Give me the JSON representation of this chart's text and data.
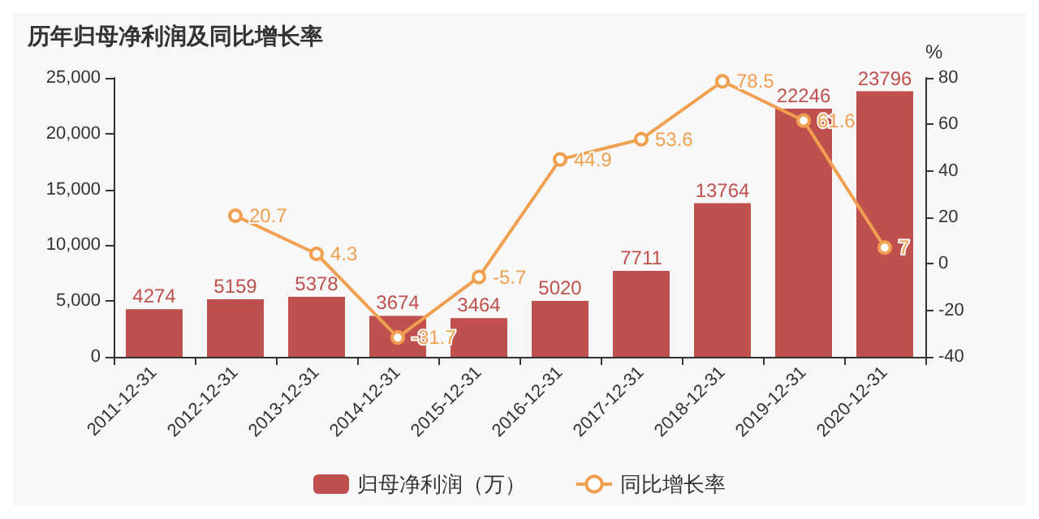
{
  "chart_data": {
    "type": "bar",
    "title": "历年归母净利润及同比增长率",
    "y2label": "%",
    "categories": [
      "2011-12-31",
      "2012-12-31",
      "2013-12-31",
      "2014-12-31",
      "2015-12-31",
      "2016-12-31",
      "2017-12-31",
      "2018-12-31",
      "2019-12-31",
      "2020-12-31"
    ],
    "series": [
      {
        "name": "归母净利润（万）",
        "color": "#c0504d",
        "values": [
          4274,
          5159,
          5378,
          3674,
          3464,
          5020,
          7711,
          13764,
          22246,
          23796
        ]
      },
      {
        "name": "同比增长率",
        "type": "line",
        "axis": "y2",
        "color": "#f0a050",
        "marker": "circle",
        "values": [
          null,
          20.7,
          4.3,
          -31.7,
          -5.7,
          44.9,
          53.6,
          78.5,
          61.6,
          7
        ]
      }
    ],
    "ylim": [
      0,
      25000
    ],
    "yticks": [
      0,
      {
        "value": 5000,
        "label": "5,000"
      },
      {
        "value": 10000,
        "label": "10,000"
      },
      {
        "value": 15000,
        "label": "15,000"
      },
      {
        "value": 20000,
        "label": "20,000"
      },
      {
        "value": 25000,
        "label": "25,000"
      }
    ],
    "y2lim": [
      -40,
      80
    ],
    "y2ticks": [
      -40,
      -20,
      0,
      20,
      40,
      60,
      80
    ],
    "data_labels": true,
    "legend": "bottom"
  }
}
